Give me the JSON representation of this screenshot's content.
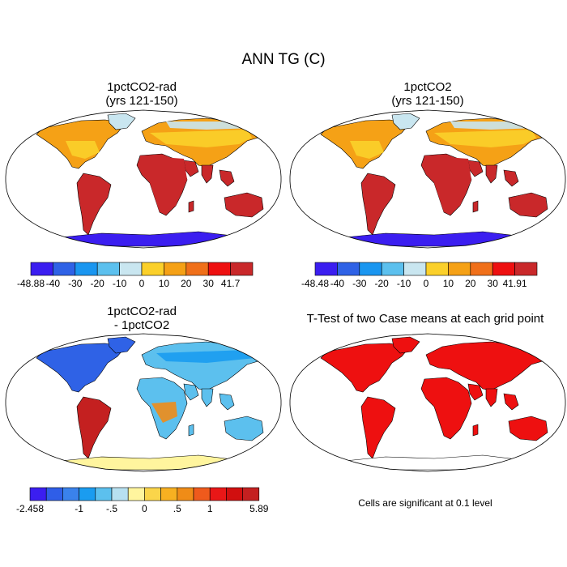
{
  "title": "ANN TG (C)",
  "panels": [
    {
      "title_line1": "1pctCO2-rad",
      "title_line2": "(yrs 121-150)",
      "kind": "abs"
    },
    {
      "title_line1": "1pctCO2",
      "title_line2": "(yrs 121-150)",
      "kind": "abs"
    },
    {
      "title_line1": "1pctCO2-rad",
      "title_line2": "- 1pctCO2",
      "kind": "diff"
    },
    {
      "title_line1": "T-Test of two Case means at each grid point",
      "title_line2": "",
      "kind": "sig"
    }
  ],
  "colorbars": [
    {
      "colors": [
        "#3b1ef0",
        "#2f62e6",
        "#1a96f0",
        "#5cc0ee",
        "#c9e6f0",
        "#fbd02a",
        "#f5a116",
        "#f0701a",
        "#ee1010",
        "#c9282a"
      ],
      "labels": [
        "-48.88",
        "-40",
        "-30",
        "-20",
        "-10",
        "0",
        "10",
        "20",
        "30",
        "41.7"
      ]
    },
    {
      "colors": [
        "#3b1ef0",
        "#2f62e6",
        "#1a96f0",
        "#5cc0ee",
        "#c9e6f0",
        "#fbd02a",
        "#f5a116",
        "#f0701a",
        "#ee1010",
        "#c9282a"
      ],
      "labels": [
        "-48.48",
        "-40",
        "-30",
        "-20",
        "-10",
        "0",
        "10",
        "20",
        "30",
        "41.91"
      ]
    },
    {
      "colors": [
        "#3b1ef0",
        "#2f5ee8",
        "#3a82ec",
        "#1a9cf0",
        "#5cc0ee",
        "#b7e0f0",
        "#fff59e",
        "#fbd54a",
        "#f7b021",
        "#f08c17",
        "#ef5a1c",
        "#e91717",
        "#d10f0f",
        "#c42020"
      ],
      "labels": [
        "-2.458",
        "-1",
        "-.5",
        "0",
        ".5",
        "1",
        "5.89"
      ],
      "label_box_index": [
        0,
        3,
        5,
        7,
        9,
        11,
        14
      ]
    }
  ],
  "significance_note": "Cells are significant at 0.1 level",
  "map_colors": {
    "ocean": "#ffffff",
    "abs_land": [
      "#c9282a",
      "#ee1010",
      "#f5a116",
      "#fbd02a",
      "#c9e6f0",
      "#3b1ef0"
    ],
    "diff_land": [
      "#5cc0ee",
      "#1a9cf0",
      "#2f62e6",
      "#c42020",
      "#f08c17",
      "#fff59e"
    ],
    "sig_land": "#ee1010"
  }
}
